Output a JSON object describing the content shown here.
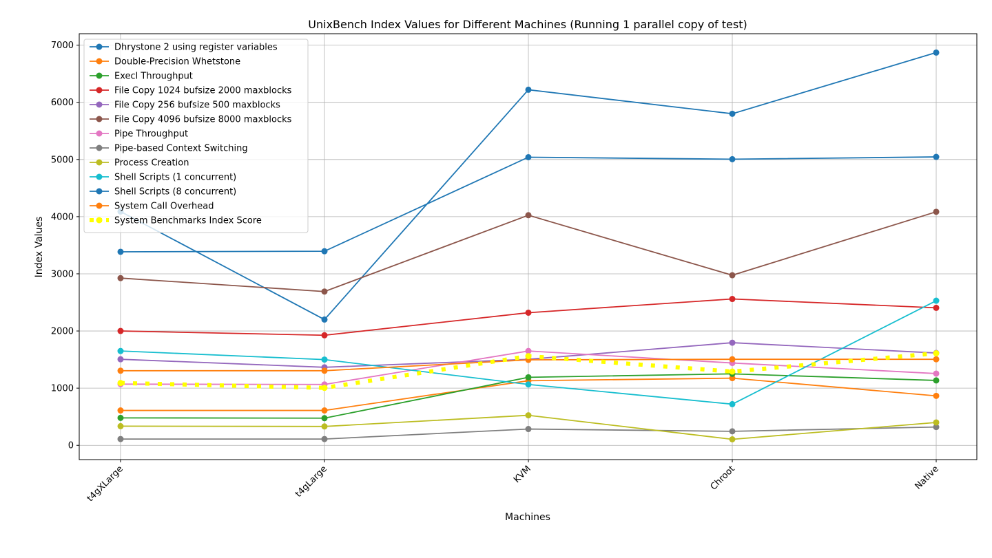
{
  "chart_data": {
    "type": "line",
    "title": "UnixBench Index Values for Different Machines (Running 1 parallel copy of test)",
    "xlabel": "Machines",
    "ylabel": "Index Values",
    "categories": [
      "t4gXLarge",
      "t4gLarge",
      "KVM",
      "Chroot",
      "Native"
    ],
    "ylim": [
      -250,
      7200
    ],
    "yticks": [
      0,
      1000,
      2000,
      3000,
      4000,
      5000,
      6000,
      7000
    ],
    "grid": true,
    "legend_position": "upper-left",
    "series": [
      {
        "name": "Dhrystone 2 using register variables",
        "color": "#1f77b4",
        "values": [
          4090,
          2200,
          6220,
          5800,
          6870
        ]
      },
      {
        "name": "Double-Precision Whetstone",
        "color": "#ff7f0e",
        "values": [
          610,
          610,
          1130,
          1175,
          865
        ]
      },
      {
        "name": "Execl Throughput",
        "color": "#2ca02c",
        "values": [
          480,
          475,
          1190,
          1250,
          1135
        ]
      },
      {
        "name": "File Copy 1024 bufsize 2000 maxblocks",
        "color": "#d62728",
        "values": [
          2000,
          1925,
          2320,
          2560,
          2405
        ]
      },
      {
        "name": "File Copy 256 bufsize 500 maxblocks",
        "color": "#9467bd",
        "values": [
          1505,
          1365,
          1505,
          1795,
          1615
        ]
      },
      {
        "name": "File Copy 4096 bufsize 8000 maxblocks",
        "color": "#8c564b",
        "values": [
          2925,
          2690,
          4025,
          2975,
          4085
        ]
      },
      {
        "name": "Pipe Throughput",
        "color": "#e377c2",
        "values": [
          1070,
          1065,
          1650,
          1440,
          1255
        ]
      },
      {
        "name": "Pipe-based Context Switching",
        "color": "#7f7f7f",
        "values": [
          110,
          110,
          285,
          245,
          320
        ]
      },
      {
        "name": "Process Creation",
        "color": "#bcbd22",
        "values": [
          335,
          330,
          525,
          105,
          400
        ]
      },
      {
        "name": "Shell Scripts (1 concurrent)",
        "color": "#17becf",
        "values": [
          1650,
          1500,
          1065,
          720,
          2530
        ]
      },
      {
        "name": "Shell Scripts (8 concurrent)",
        "color": "#1f77b4",
        "values": [
          3385,
          3395,
          5040,
          5005,
          5045
        ]
      },
      {
        "name": "System Call Overhead",
        "color": "#ff7f0e",
        "values": [
          1305,
          1305,
          1495,
          1505,
          1505
        ]
      },
      {
        "name": "System Benchmarks Index Score",
        "color": "#ffff00",
        "dashed": true,
        "values": [
          1090,
          1005,
          1560,
          1290,
          1610
        ]
      }
    ]
  }
}
